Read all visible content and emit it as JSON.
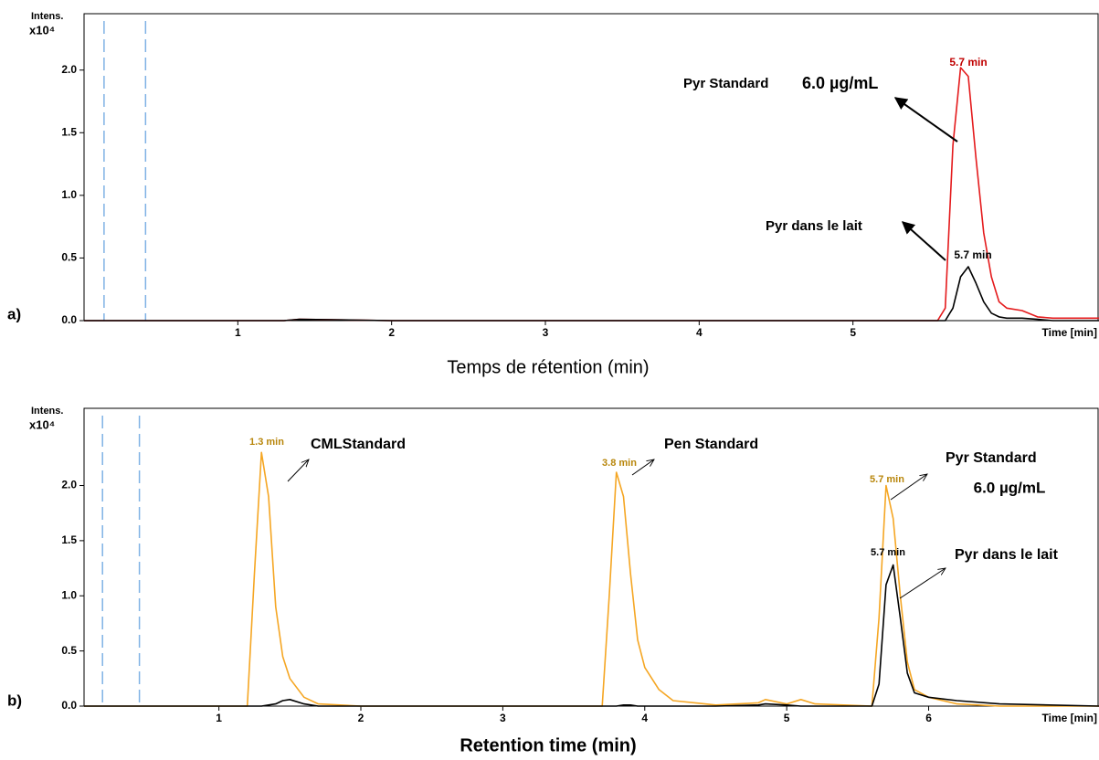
{
  "chart_data": [
    {
      "type": "line",
      "panel_label": "a)",
      "x_title": "Temps de rétention (min)",
      "x_label": "Time [min]",
      "y_label": "Intens.",
      "y_scale": "x10⁴",
      "x": [
        0,
        1.3,
        1.4,
        2,
        3,
        4,
        5,
        5.55,
        5.6,
        5.65,
        5.7,
        5.75,
        5.8,
        5.85,
        5.9,
        5.95,
        6.0,
        6.1,
        6.2,
        6.3,
        6.6
      ],
      "series": [
        {
          "color": "#e41a1c",
          "values": [
            0,
            0,
            0.01,
            0,
            0,
            0,
            0,
            0,
            0.1,
            1.4,
            2.02,
            1.95,
            1.3,
            0.7,
            0.35,
            0.15,
            0.1,
            0.08,
            0.03,
            0.02,
            0.02
          ]
        },
        {
          "color": "#000000",
          "values": [
            0,
            0,
            0.01,
            0,
            0,
            0,
            0,
            0,
            0,
            0.1,
            0.35,
            0.43,
            0.3,
            0.15,
            0.06,
            0.03,
            0.02,
            0.02,
            0.01,
            0,
            0
          ]
        }
      ],
      "xlim": [
        0,
        6.6
      ],
      "ylim": [
        0,
        2.45
      ],
      "xticks": [
        1,
        2,
        3,
        4,
        5
      ],
      "yticks": [
        {
          "value": 0,
          "label": "0.0"
        },
        0.5,
        {
          "value": 1,
          "label": "1.0"
        },
        1.5,
        {
          "value": 2,
          "label": "2.0"
        }
      ],
      "vlines": [
        0.13,
        0.4
      ],
      "vline_color": "#7fb2e5",
      "annotations": [
        "5.7 min",
        "Pyr Standard",
        "6.0 µg/mL",
        "Pyr dans le lait",
        "5.7 min"
      ]
    },
    {
      "type": "line",
      "panel_label": "b)",
      "x_title": "Retention time (min)",
      "x_label": "Time [min]",
      "y_label": "Intens.",
      "y_scale": "x10⁴",
      "x": [
        0.05,
        1.2,
        1.25,
        1.3,
        1.35,
        1.4,
        1.45,
        1.5,
        1.6,
        1.7,
        2,
        3,
        3.7,
        3.75,
        3.8,
        3.85,
        3.9,
        3.95,
        4.0,
        4.1,
        4.2,
        4.5,
        4.8,
        4.85,
        5,
        5.1,
        5.2,
        5.6,
        5.65,
        5.7,
        5.75,
        5.8,
        5.85,
        5.9,
        6.0,
        6.2,
        6.5,
        7.2
      ],
      "series": [
        {
          "color": "#f5a623",
          "values": [
            0,
            0,
            1.2,
            2.3,
            1.9,
            0.9,
            0.45,
            0.25,
            0.08,
            0.02,
            0,
            0,
            0,
            1.0,
            2.12,
            1.9,
            1.2,
            0.6,
            0.35,
            0.15,
            0.05,
            0.01,
            0.03,
            0.06,
            0.02,
            0.06,
            0.02,
            0,
            0.8,
            2.0,
            1.7,
            1.0,
            0.4,
            0.15,
            0.08,
            0.02,
            0,
            0
          ]
        },
        {
          "color": "#000000",
          "values": [
            0,
            0,
            0,
            0,
            0.01,
            0.02,
            0.05,
            0.06,
            0.02,
            0,
            0,
            0,
            0,
            0,
            0,
            0.01,
            0.01,
            0,
            0,
            0,
            0,
            0,
            0.01,
            0.02,
            0.01,
            0,
            0,
            0,
            0.2,
            1.1,
            1.28,
            0.8,
            0.3,
            0.12,
            0.08,
            0.05,
            0.02,
            0
          ]
        }
      ],
      "xlim": [
        0.05,
        7.2
      ],
      "ylim": [
        0,
        2.7
      ],
      "xticks": [
        1,
        2,
        3,
        4,
        5,
        6
      ],
      "yticks": [
        {
          "value": 0,
          "label": "0.0"
        },
        0.5,
        {
          "value": 1,
          "label": "1.0"
        },
        1.5,
        {
          "value": 2,
          "label": "2.0"
        }
      ],
      "vlines": [
        0.18,
        0.44
      ],
      "vline_color": "#7fb2e5",
      "annotations": [
        "1.3 min",
        "CMLStandard",
        "3.8 min",
        "Pen Standard",
        "Pyr Standard",
        "6.0 µg/mL",
        "5.7 min",
        "5.7 min",
        "Pyr dans le lait"
      ]
    }
  ]
}
